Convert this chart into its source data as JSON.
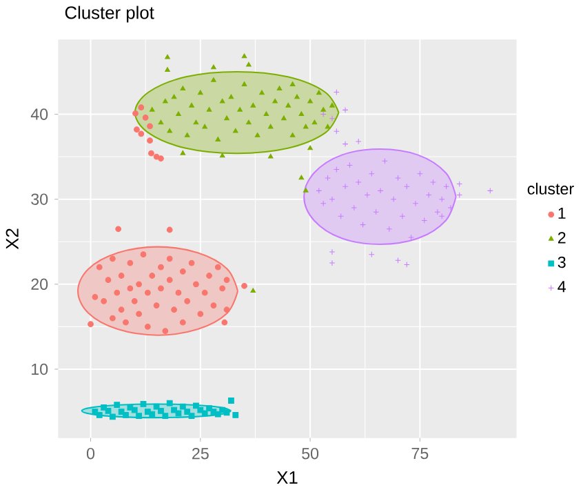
{
  "chart_data": {
    "type": "scatter",
    "title": "Cluster plot",
    "xlabel": "X1",
    "ylabel": "X2",
    "legend_title": "cluster",
    "legend": "right",
    "grid": true,
    "xlim": [
      -7.4,
      97
    ],
    "ylim": [
      1.9,
      48.8
    ],
    "xticks": [
      0,
      25,
      50,
      75
    ],
    "yticks": [
      10,
      20,
      30,
      40
    ],
    "series": [
      {
        "type": "area",
        "color": "#F8766D",
        "x": [
          33.5,
          31.1,
          24.4,
          15.3,
          6.2,
          -0.5,
          -2.9,
          -0.5,
          6.2,
          15.3,
          24.4,
          31.1,
          33.5
        ],
        "values": [
          19.2,
          21.8,
          23.7,
          24.4,
          23.7,
          21.8,
          19.2,
          16.6,
          14.7,
          14.0,
          14.7,
          16.6,
          19.2
        ]
      },
      {
        "type": "area",
        "color": "#7CAE00",
        "x": [
          56.5,
          53.4,
          44.9,
          33.3,
          21.7,
          13.2,
          10.1,
          13.2,
          21.7,
          33.3,
          44.9,
          53.4,
          56.5
        ],
        "values": [
          40.2,
          42.6,
          44.4,
          45.0,
          44.4,
          42.6,
          40.2,
          37.8,
          36.0,
          35.4,
          36.0,
          37.8,
          40.2
        ]
      },
      {
        "type": "area",
        "color": "#00BFC4",
        "x": [
          32,
          29.7,
          23.5,
          15,
          6.5,
          0.3,
          -2,
          0.3,
          6.5,
          15,
          23.5,
          29.7,
          32
        ],
        "values": [
          5.1,
          5.5,
          5.8,
          5.9,
          5.8,
          5.5,
          5.1,
          4.7,
          4.4,
          4.3,
          4.4,
          4.7,
          5.1
        ]
      },
      {
        "type": "area",
        "color": "#C77CFF",
        "x": [
          83.2,
          80.9,
          74.6,
          65.9,
          57.2,
          50.9,
          48.6,
          50.9,
          57.2,
          65.9,
          74.6,
          80.9,
          83.2
        ],
        "values": [
          30.3,
          33.1,
          35.2,
          35.9,
          35.2,
          33.1,
          30.3,
          27.5,
          25.4,
          24.7,
          25.4,
          27.5,
          30.3
        ]
      },
      {
        "name": "1",
        "color": "#F8766D",
        "marker": "circle",
        "x": [
          2,
          3,
          4,
          5,
          5,
          6,
          7,
          7,
          8,
          9,
          9,
          10,
          11,
          11,
          12,
          13,
          13,
          14,
          15,
          16,
          16,
          17,
          18,
          18,
          19,
          20,
          21,
          21,
          22,
          23,
          24,
          25,
          26,
          27,
          28,
          29,
          30,
          31,
          31,
          1,
          0,
          30.5,
          35,
          6.3,
          18,
          10.2,
          11.5,
          12.5,
          13.5,
          10.5,
          11.5,
          13.5,
          13.8,
          15,
          16
        ],
        "values": [
          22,
          18,
          20.5,
          16,
          23,
          19,
          21,
          17,
          15.5,
          19.5,
          22.5,
          18,
          20,
          16.5,
          23.5,
          19,
          15,
          21,
          17.5,
          22,
          19.5,
          14.5,
          20.5,
          23,
          17,
          19,
          21.5,
          15.5,
          18,
          22.5,
          20,
          16.5,
          19,
          21,
          17.5,
          22,
          19.5,
          20.5,
          17,
          18.5,
          15.3,
          15.5,
          19.8,
          26.5,
          26.4,
          40.1,
          40.8,
          39.6,
          38.6,
          38.2,
          37.7,
          36.9,
          35.4,
          35,
          34.8
        ]
      },
      {
        "name": "2",
        "color": "#7CAE00",
        "marker": "triangle",
        "x": [
          14,
          16,
          17,
          18,
          19,
          20,
          21,
          22,
          23,
          24,
          25,
          26,
          27,
          28,
          29,
          30,
          31,
          32,
          33,
          34,
          35,
          36,
          37,
          38,
          39,
          40,
          41,
          42,
          43,
          44,
          45,
          46,
          47,
          48,
          49,
          50,
          51,
          52,
          53,
          54,
          55,
          17.5,
          17.5,
          28,
          35,
          36,
          46,
          21,
          30,
          41,
          50,
          48,
          49,
          37
        ],
        "values": [
          40.5,
          39,
          41.5,
          38,
          42,
          40,
          43,
          37.5,
          41,
          39,
          42.5,
          38.5,
          40.5,
          44,
          37,
          41.5,
          39.5,
          42,
          38,
          40.5,
          43.5,
          39,
          41,
          37.5,
          42.5,
          40,
          38.5,
          41.5,
          43,
          39.5,
          41,
          37.5,
          42,
          40,
          38.5,
          41.5,
          39,
          42.5,
          40.5,
          38.5,
          41,
          46.7,
          45.2,
          45.5,
          46.8,
          45.8,
          43.5,
          35.4,
          35.1,
          35,
          36,
          32.5,
          31,
          19.2
        ]
      },
      {
        "name": "3",
        "color": "#00BFC4",
        "marker": "square",
        "x": [
          1,
          2,
          3,
          4,
          5,
          6,
          7,
          8,
          9,
          10,
          11,
          12,
          13,
          14,
          15,
          16,
          17,
          18,
          19,
          20,
          21,
          22,
          23,
          24,
          25,
          26,
          27,
          28,
          29,
          30,
          31,
          32,
          33
        ],
        "values": [
          5,
          4.6,
          5.5,
          5.1,
          4.4,
          5.8,
          5,
          4.6,
          5.5,
          5.2,
          4.5,
          5.9,
          5,
          4.7,
          5.6,
          5.1,
          4.5,
          6,
          5.2,
          4.8,
          5.6,
          5,
          4.5,
          5.7,
          5.2,
          4.8,
          5.4,
          5,
          4.7,
          5.2,
          4.9,
          6.3,
          4.6
        ]
      },
      {
        "name": "4",
        "color": "#C77CFF",
        "marker": "cross",
        "x": [
          52,
          53,
          54,
          55,
          56,
          57,
          58,
          59,
          60,
          61,
          62,
          63,
          64,
          65,
          66,
          67,
          68,
          69,
          70,
          71,
          72,
          73,
          74,
          75,
          76,
          77,
          78,
          79,
          80,
          81,
          82,
          56,
          58,
          53,
          55,
          56,
          58,
          61,
          91,
          84,
          84,
          80,
          55,
          55,
          70,
          72,
          64
        ],
        "values": [
          31,
          29.5,
          32.5,
          30,
          33.5,
          28,
          31.5,
          34,
          29,
          32,
          27,
          30.5,
          33,
          28.5,
          31,
          34.5,
          26.5,
          30,
          32.5,
          28,
          31.5,
          25.5,
          29.5,
          33,
          27.5,
          30.5,
          32,
          28.5,
          30,
          31.5,
          29,
          42.6,
          40.5,
          40,
          39.5,
          38,
          36.5,
          36.8,
          31,
          31.8,
          30.5,
          28,
          23.8,
          22.5,
          22.8,
          22.3,
          23.5
        ]
      }
    ]
  }
}
